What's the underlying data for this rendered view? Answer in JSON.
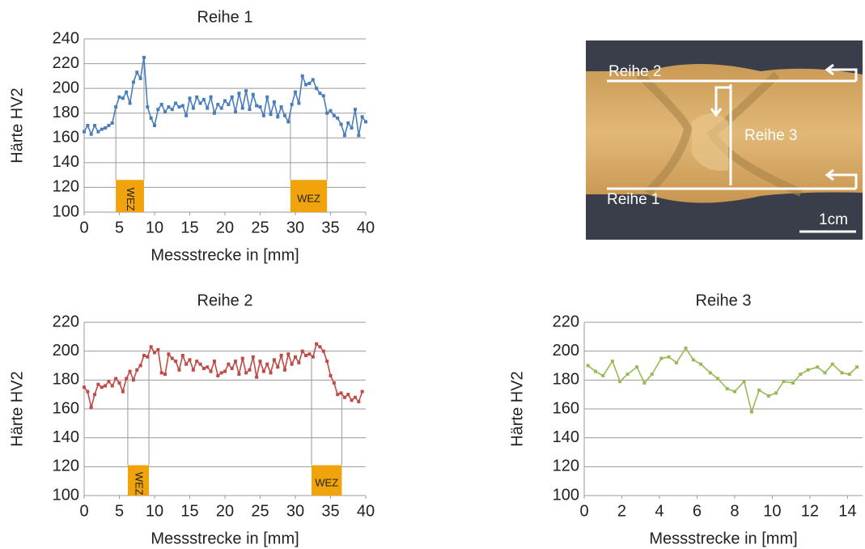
{
  "chart_data": [
    {
      "type": "line",
      "title": "Reihe 1",
      "x_label": "Messstrecke in [mm]",
      "y_label": "Härte HV2",
      "xlim": [
        0,
        40
      ],
      "xticks": [
        0,
        5,
        10,
        15,
        20,
        25,
        30,
        35,
        40
      ],
      "ylim": [
        100,
        240
      ],
      "yticks": [
        100,
        120,
        140,
        160,
        180,
        200,
        220,
        240
      ],
      "grid": true,
      "x": [
        0,
        0.5,
        1,
        1.5,
        2,
        2.5,
        3,
        3.5,
        4,
        4.5,
        5,
        5.5,
        6,
        6.5,
        7,
        7.5,
        8,
        8.5,
        9,
        9.5,
        10,
        10.5,
        11,
        11.5,
        12,
        12.5,
        13,
        13.5,
        14,
        14.5,
        15,
        15.5,
        16,
        16.5,
        17,
        17.5,
        18,
        18.5,
        19,
        19.5,
        20,
        20.5,
        21,
        21.5,
        22,
        22.5,
        23,
        23.5,
        24,
        24.5,
        25,
        25.5,
        26,
        26.5,
        27,
        27.5,
        28,
        28.5,
        29,
        29.5,
        30,
        30.5,
        31,
        31.5,
        32,
        32.5,
        33,
        33.5,
        34,
        34.5,
        35,
        35.5,
        36,
        36.5,
        37,
        37.5,
        38,
        38.5,
        39,
        39.5,
        40
      ],
      "series": [
        {
          "name": "Reihe 1",
          "color": "#4a7ebb",
          "values": [
            165,
            170,
            163,
            170,
            165,
            167,
            168,
            170,
            172,
            185,
            193,
            192,
            197,
            188,
            205,
            213,
            208,
            225,
            185,
            176,
            170,
            183,
            187,
            181,
            185,
            183,
            188,
            185,
            186,
            178,
            192,
            184,
            193,
            188,
            191,
            184,
            193,
            180,
            187,
            184,
            190,
            187,
            193,
            181,
            196,
            184,
            198,
            183,
            195,
            186,
            185,
            178,
            193,
            179,
            189,
            177,
            185,
            178,
            173,
            187,
            197,
            188,
            210,
            203,
            204,
            207,
            200,
            196,
            194,
            180,
            182,
            178,
            176,
            171,
            162,
            172,
            168,
            183,
            162,
            177,
            173
          ]
        }
      ],
      "regions": [
        {
          "label": "WEZ",
          "color": "#f0a30a",
          "x": [
            4.5,
            8.5
          ],
          "y": [
            100,
            126
          ]
        },
        {
          "label": "WEZ",
          "color": "#f0a30a",
          "x": [
            29.3,
            34.5
          ],
          "y": [
            100,
            126
          ]
        }
      ]
    },
    {
      "type": "line",
      "title": "Reihe 2",
      "x_label": "Messstrecke in [mm]",
      "y_label": "Härte HV2",
      "xlim": [
        0,
        40
      ],
      "xticks": [
        0,
        5,
        10,
        15,
        20,
        25,
        30,
        35,
        40
      ],
      "ylim": [
        100,
        220
      ],
      "yticks": [
        100,
        120,
        140,
        160,
        180,
        200,
        220
      ],
      "grid": true,
      "x": [
        0,
        0.5,
        1,
        1.5,
        2,
        2.5,
        3,
        3.5,
        4,
        4.5,
        5,
        5.5,
        6,
        6.5,
        7,
        7.5,
        8,
        8.5,
        9,
        9.5,
        10,
        10.5,
        11,
        11.5,
        12,
        12.5,
        13,
        13.5,
        14,
        14.5,
        15,
        15.5,
        16,
        16.5,
        17,
        17.5,
        18,
        18.5,
        19,
        19.5,
        20,
        20.5,
        21,
        21.5,
        22,
        22.5,
        23,
        23.5,
        24,
        24.5,
        25,
        25.5,
        26,
        26.5,
        27,
        27.5,
        28,
        28.5,
        29,
        29.5,
        30,
        30.5,
        31,
        31.5,
        32,
        32.5,
        33,
        33.5,
        34,
        34.5,
        35,
        35.5,
        36,
        36.5,
        37,
        37.5,
        38,
        38.5,
        39,
        39.5
      ],
      "series": [
        {
          "name": "Reihe 2",
          "color": "#be4b48",
          "values": [
            175,
            172,
            161,
            170,
            177,
            175,
            176,
            179,
            176,
            181,
            178,
            172,
            181,
            186,
            180,
            187,
            190,
            197,
            196,
            203,
            199,
            201,
            185,
            184,
            198,
            195,
            193,
            187,
            197,
            191,
            194,
            187,
            193,
            191,
            188,
            189,
            186,
            193,
            183,
            185,
            186,
            191,
            188,
            193,
            184,
            195,
            185,
            187,
            196,
            182,
            193,
            186,
            191,
            185,
            194,
            189,
            197,
            187,
            198,
            191,
            196,
            192,
            200,
            197,
            198,
            196,
            205,
            203,
            200,
            193,
            183,
            178,
            170,
            171,
            168,
            170,
            166,
            168,
            165,
            172
          ]
        }
      ],
      "regions": [
        {
          "label": "WEZ",
          "color": "#f0a30a",
          "x": [
            6.2,
            9.2
          ],
          "y": [
            100,
            121
          ]
        },
        {
          "label": "WEZ",
          "color": "#f0a30a",
          "x": [
            32.3,
            36.6
          ],
          "y": [
            100,
            121
          ]
        }
      ]
    },
    {
      "type": "line",
      "title": "Reihe 3",
      "x_label": "Messstrecke in [mm]",
      "y_label": "Härte HV2",
      "xlim": [
        0,
        14.8
      ],
      "xticks": [
        0,
        2,
        4,
        6,
        8,
        10,
        12,
        14
      ],
      "ylim": [
        100,
        220
      ],
      "yticks": [
        100,
        120,
        140,
        160,
        180,
        200,
        220
      ],
      "grid": true,
      "x": [
        0.2,
        0.6,
        1.0,
        1.5,
        1.9,
        2.3,
        2.8,
        3.2,
        3.6,
        4.1,
        4.5,
        4.9,
        5.4,
        5.8,
        6.2,
        6.7,
        7.1,
        7.6,
        8.0,
        8.5,
        8.9,
        9.3,
        9.8,
        10.2,
        10.6,
        11.1,
        11.5,
        11.9,
        12.4,
        12.8,
        13.2,
        13.7,
        14.1,
        14.5
      ],
      "series": [
        {
          "name": "Reihe 3",
          "color": "#98b954",
          "values": [
            190,
            186,
            183,
            193,
            179,
            184,
            189,
            178,
            184,
            195,
            196,
            192,
            202,
            194,
            191,
            185,
            181,
            174,
            172,
            179,
            158,
            173,
            169,
            171,
            179,
            178,
            184,
            187,
            189,
            185,
            191,
            185,
            184,
            189
          ]
        }
      ]
    }
  ],
  "photo": {
    "labels": [
      "Reihe 2",
      "Reihe 3",
      "Reihe 1"
    ],
    "scale_bar": "1cm"
  }
}
